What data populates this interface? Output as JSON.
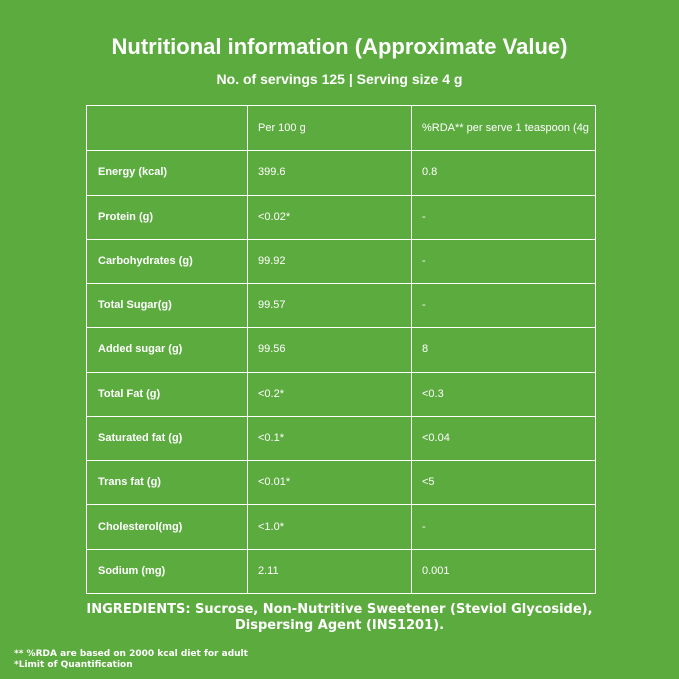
{
  "header": {
    "title": "Nutritional information (Approximate Value)",
    "subtitle": "No. of servings 125 | Serving size 4 g"
  },
  "table": {
    "columns": [
      "",
      "Per 100 g",
      "%RDA** per serve 1 teaspoon (4g"
    ],
    "rows": [
      [
        "Energy (kcal)",
        "399.6",
        "0.8"
      ],
      [
        "Protein (g)",
        "<0.02*",
        "-"
      ],
      [
        "Carbohydrates (g)",
        "99.92",
        "-"
      ],
      [
        "Total Sugar(g)",
        "99.57",
        "-"
      ],
      [
        "Added sugar (g)",
        "99.56",
        "8"
      ],
      [
        "Total Fat (g)",
        "<0.2*",
        "<0.3"
      ],
      [
        "Saturated fat (g)",
        "<0.1*",
        "<0.04"
      ],
      [
        "Trans fat (g)",
        "<0.01*",
        "<5"
      ],
      [
        "Cholesterol(mg)",
        "<1.0*",
        "-"
      ],
      [
        "Sodium (mg)",
        "2.11",
        "0.001"
      ]
    ]
  },
  "ingredients": [
    "INGREDIENTS: Sucrose, Non-Nutritive Sweetener (Steviol Glycoside),",
    "Dispersing Agent (INS1201)."
  ],
  "footnotes": [
    "** %RDA are based on 2000 kcal diet for adult",
    "*Limit of Quantification"
  ]
}
